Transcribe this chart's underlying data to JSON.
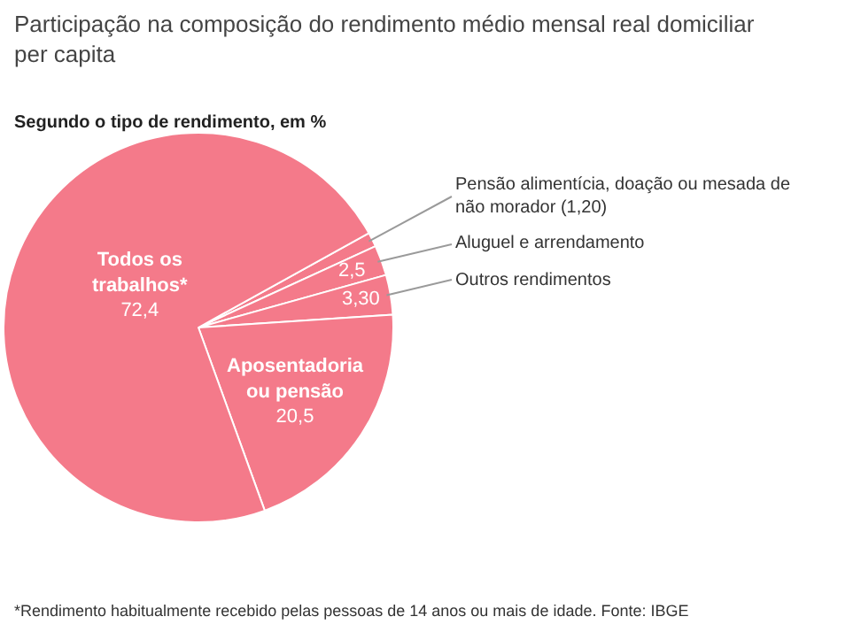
{
  "chart_data": {
    "type": "pie",
    "title": "Participação na composição do rendimento médio mensal real domiciliar per capita",
    "subtitle": "Segundo o tipo de rendimento, em %",
    "categories": [
      "Pensão alimentícia, doação ou mesada de não morador",
      "Aluguel e arrendamento",
      "Outros rendimentos",
      "Aposentadoria ou pensão",
      "Todos os trabalhos*"
    ],
    "values": [
      1.2,
      2.5,
      3.3,
      20.5,
      72.4
    ],
    "value_labels": [
      "(1,20)",
      "2,5",
      "3,30",
      "20,5",
      "72,4"
    ],
    "colors": [
      "#f47a8a",
      "#f47a8a",
      "#f47a8a",
      "#f47a8a",
      "#f47a8a"
    ],
    "annotations": [
      "*Rendimento habitualmente recebido pelas pessoas de 14 anos ou mais de idade. Fonte: IBGE"
    ]
  }
}
